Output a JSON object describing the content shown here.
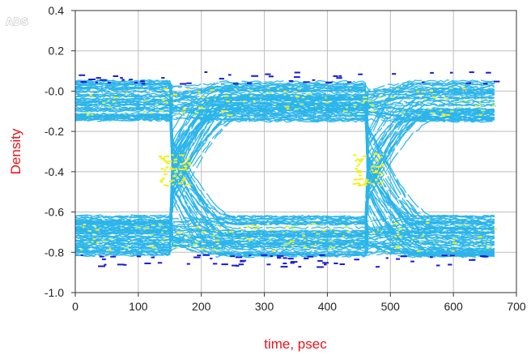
{
  "watermark": "ADS",
  "chart_data": {
    "type": "eye_density",
    "title": "",
    "xlabel": "time, psec",
    "ylabel": "Density",
    "xlim": [
      0,
      700
    ],
    "ylim": [
      -1.0,
      0.4
    ],
    "xticks": [
      0,
      100,
      200,
      300,
      400,
      500,
      600,
      700
    ],
    "xtick_labels": [
      "0",
      "100",
      "200",
      "300",
      "400",
      "500",
      "600",
      "700"
    ],
    "yticks": [
      -1.0,
      -0.8,
      -0.6,
      -0.4,
      -0.2,
      0.0,
      0.2,
      0.4
    ],
    "ytick_labels": [
      "-1.0",
      "-0.8",
      "-0.6",
      "-0.4",
      "-0.2",
      "-0.0",
      "0.2",
      "0.4"
    ],
    "grid": true,
    "data_x_range": [
      0,
      665
    ],
    "levels": {
      "high": -0.05,
      "low": -0.72,
      "high_spread": 0.2,
      "low_spread": 0.2
    },
    "crossings_psec": [
      155,
      465
    ],
    "unit_interval_psec": 310,
    "density_colors": [
      "#2ab4ea",
      "#1a1ad6",
      "#b8f27a",
      "#f0f020"
    ]
  }
}
